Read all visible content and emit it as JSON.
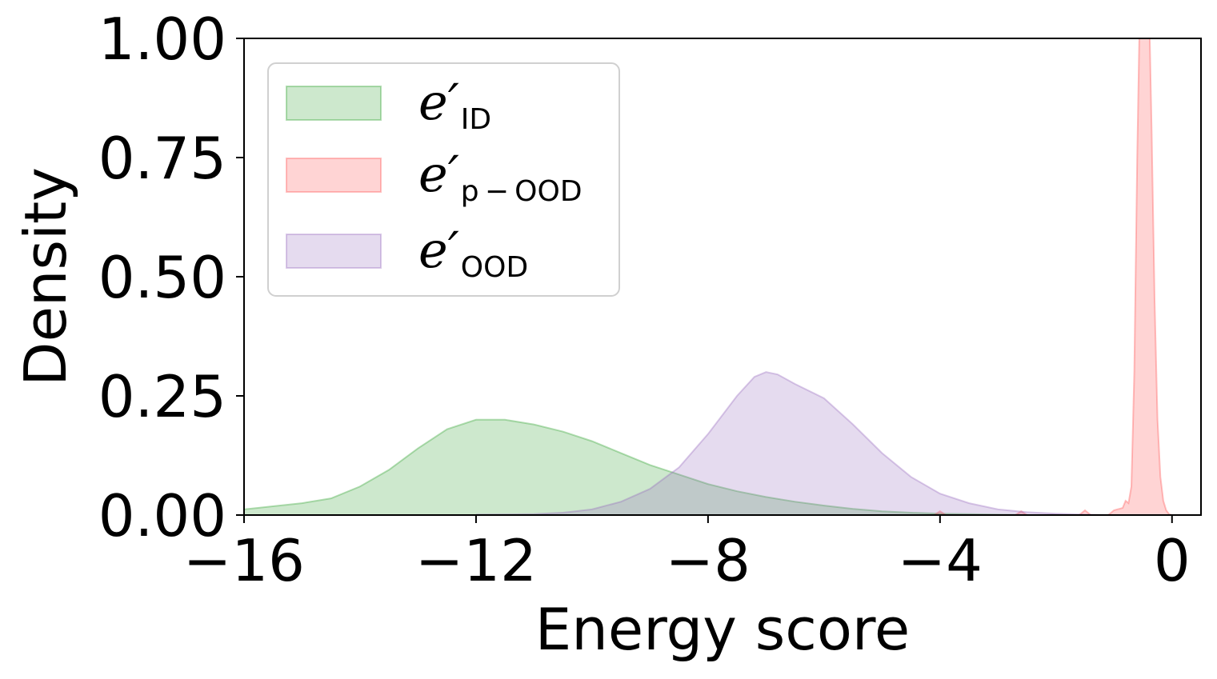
{
  "chart_data": {
    "type": "area",
    "xlabel": "Energy score",
    "ylabel": "Density",
    "xlim": [
      -16,
      0.5
    ],
    "ylim": [
      0,
      1.0
    ],
    "x_ticks": [
      -16,
      -12,
      -8,
      -4,
      0
    ],
    "x_tick_labels": [
      "−16",
      "−12",
      "−8",
      "−4",
      "0"
    ],
    "y_ticks": [
      0,
      0.25,
      0.5,
      0.75,
      1.0
    ],
    "y_tick_labels": [
      "0.00",
      "0.25",
      "0.50",
      "0.75",
      "1.00"
    ],
    "grid": false,
    "legend_position": "top-left",
    "series": [
      {
        "name": "e′",
        "subscript": "ID",
        "color": "#2ca02c",
        "x": [
          -16,
          -15,
          -14.5,
          -14,
          -13.5,
          -13,
          -12.5,
          -12,
          -11.5,
          -11,
          -10.5,
          -10,
          -9.5,
          -9,
          -8.5,
          -8,
          -7.5,
          -7,
          -6.5,
          -6,
          -5.5,
          -5,
          -4.5,
          -4,
          -3.5,
          -3,
          -2.5
        ],
        "y": [
          0.012,
          0.025,
          0.035,
          0.06,
          0.095,
          0.14,
          0.18,
          0.2,
          0.2,
          0.19,
          0.175,
          0.155,
          0.13,
          0.105,
          0.085,
          0.065,
          0.05,
          0.038,
          0.028,
          0.02,
          0.013,
          0.008,
          0.005,
          0.003,
          0.002,
          0.001,
          0
        ]
      },
      {
        "name": "e′",
        "subscript": "p − OOD",
        "color": "#ff4d4d",
        "x": [
          -4.1,
          -4.0,
          -3.9,
          -2.7,
          -2.6,
          -2.5,
          -1.6,
          -1.5,
          -1.4,
          -1.1,
          -1.0,
          -0.85,
          -0.8,
          -0.75,
          -0.7,
          -0.65,
          -0.6,
          -0.55,
          -0.5,
          -0.45,
          -0.4,
          -0.35,
          -0.3,
          -0.25,
          -0.2,
          -0.15,
          -0.1,
          -0.05,
          0
        ],
        "y": [
          0,
          0.008,
          0,
          0,
          0.008,
          0,
          0,
          0.01,
          0,
          0,
          0.01,
          0.015,
          0.03,
          0.025,
          0.06,
          0.3,
          0.75,
          1.1,
          1.3,
          1.3,
          1.1,
          0.8,
          0.45,
          0.2,
          0.08,
          0.03,
          0.01,
          0.002,
          0
        ]
      },
      {
        "name": "e′",
        "subscript": "OOD",
        "color": "#9467bd",
        "x": [
          -12,
          -11,
          -10.5,
          -10,
          -9.5,
          -9,
          -8.5,
          -8,
          -7.5,
          -7.2,
          -7,
          -6.8,
          -6.5,
          -6,
          -5.5,
          -5,
          -4.5,
          -4,
          -3.5,
          -3,
          -2.5,
          -2,
          -1.5,
          -1
        ],
        "y": [
          0.001,
          0.002,
          0.005,
          0.012,
          0.028,
          0.055,
          0.1,
          0.17,
          0.25,
          0.29,
          0.3,
          0.295,
          0.275,
          0.245,
          0.19,
          0.13,
          0.08,
          0.045,
          0.025,
          0.012,
          0.006,
          0.003,
          0.001,
          0
        ]
      }
    ]
  }
}
